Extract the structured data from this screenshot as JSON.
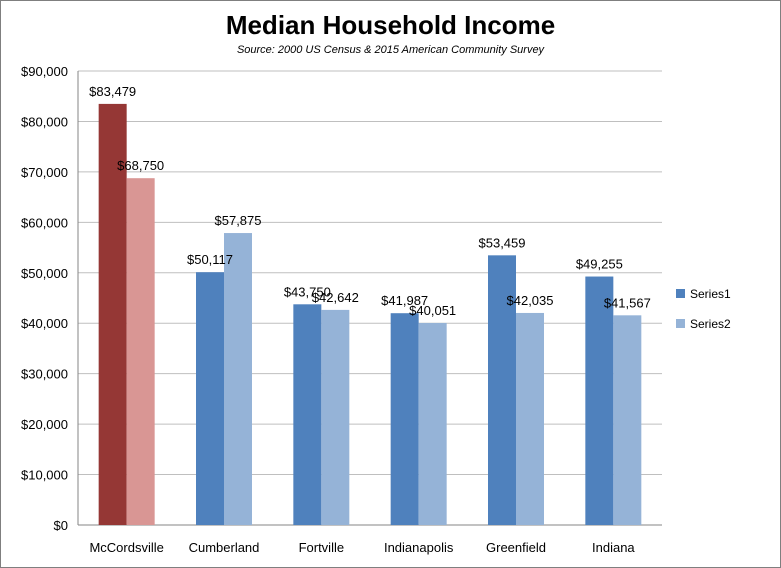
{
  "chart_data": {
    "type": "bar",
    "title": "Median Household Income",
    "subtitle": "Source:  2000 US Census & 2015 American Community Survey",
    "categories": [
      "McCordsville",
      "Cumberland",
      "Fortville",
      "Indianapolis",
      "Greenfield",
      "Indiana"
    ],
    "series": [
      {
        "name": "Series1",
        "values": [
          83479,
          50117,
          43750,
          41987,
          53459,
          49255
        ],
        "labels": [
          "$83,479",
          "$50,117",
          "$43,750",
          "$41,987",
          "$53,459",
          "$49,255"
        ],
        "color": "#4f81bd",
        "highlight_color": "#953735"
      },
      {
        "name": "Series2",
        "values": [
          68750,
          57875,
          42642,
          40051,
          42035,
          41567
        ],
        "labels": [
          "$68,750",
          "$57,875",
          "$42,642",
          "$40,051",
          "$42,035",
          "$41,567"
        ],
        "color": "#95b3d7",
        "highlight_color": "#d99694"
      }
    ],
    "highlight_category": "McCordsville",
    "ylim": [
      0,
      90000
    ],
    "ytick_labels": [
      "$0",
      "$10,000",
      "$20,000",
      "$30,000",
      "$40,000",
      "$50,000",
      "$60,000",
      "$70,000",
      "$80,000",
      "$90,000"
    ],
    "grid": true,
    "legend_position": "right",
    "xlabel": "",
    "ylabel": ""
  }
}
